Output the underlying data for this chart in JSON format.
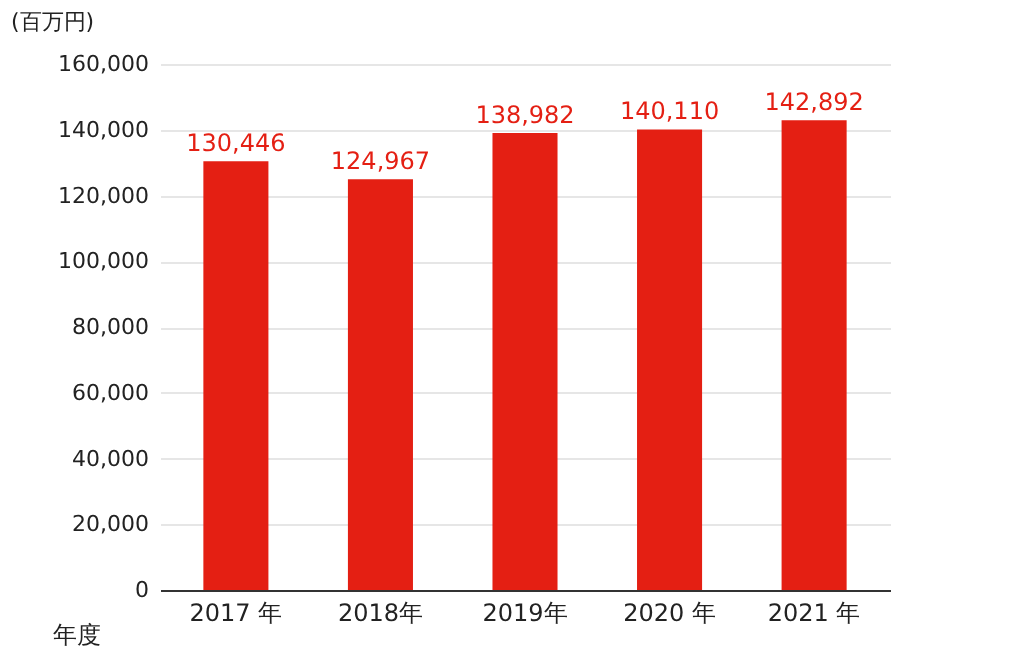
{
  "chart_data": {
    "type": "bar",
    "ylabel": "(百万円)",
    "xlabel": "年度",
    "categories": [
      "2017 年",
      "2018年",
      "2019年",
      "2020 年",
      "2021 年"
    ],
    "values": [
      130446,
      124967,
      138982,
      140110,
      142892
    ],
    "value_labels": [
      "130,446",
      "124,967",
      "138,982",
      "140,110",
      "142,892"
    ],
    "color": "#e41f13",
    "ylim": [
      0,
      160000
    ],
    "yticks": [
      0,
      {
        "value": 20000,
        "label": "20,000"
      },
      {
        "value": 40000,
        "label": "40,000"
      },
      {
        "value": 60000,
        "label": "60,000"
      },
      {
        "value": 80000,
        "label": "80,000"
      },
      {
        "value": 100000,
        "label": "100,000"
      },
      {
        "value": 120000,
        "label": "120,000"
      },
      {
        "value": 140000,
        "label": "140,000"
      },
      {
        "value": 160000,
        "label": "160,000"
      }
    ],
    "grid": "y"
  }
}
